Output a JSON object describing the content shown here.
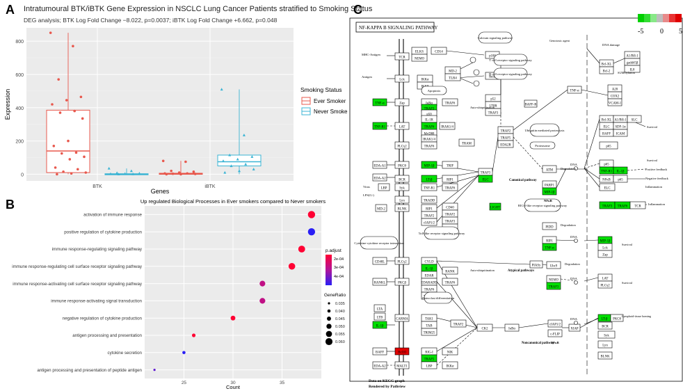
{
  "panel_a": {
    "letter": "A",
    "title": "Intratumoural BTK/iBTK Gene Expression in NSCLC Lung Cancer Patients stratified to Smoking Status",
    "subtitle": "DEG analysis; BTK Log Fold Change −8.022, p=0.0037; iBTK Log Fold Change +6.662, p=0.048",
    "legend_title": "Smoking Status",
    "colors": {
      "ever": "#e8584d",
      "never": "#3bb4d4",
      "panel_bg": "#ebebeb"
    },
    "chart_data": {
      "type": "box",
      "title": "Intratumoural BTK/iBTK Gene Expression in NSCLC Lung Cancer Patients stratified to Smoking Status",
      "xlabel": "Genes",
      "ylabel": "Expression",
      "categories": [
        "BTK",
        "iBTK"
      ],
      "ylim": [
        -40,
        880
      ],
      "yticks": [
        0,
        200,
        400,
        600,
        800
      ],
      "series": [
        {
          "name": "Ever Smoker",
          "boxes": [
            {
              "q1": 10,
              "median": 140,
              "q3": 385,
              "min": 0,
              "max": 850
            },
            {
              "q1": 0,
              "median": 2,
              "q3": 6,
              "min": 0,
              "max": 80
            }
          ],
          "points": [
            [
              850,
              770,
              570,
              465,
              445,
              420,
              380,
              370,
              335,
              200,
              170,
              130,
              125,
              105,
              90,
              40,
              30,
              15,
              10,
              5,
              0
            ],
            [
              80,
              75,
              20,
              15,
              10,
              5,
              5,
              3,
              2,
              0,
              0
            ]
          ]
        },
        {
          "name": "Never Smoker",
          "boxes": [
            {
              "q1": 0,
              "median": 1,
              "q3": 3,
              "min": 0,
              "max": 35
            },
            {
              "q1": 50,
              "median": 75,
              "q3": 115,
              "min": 0,
              "max": 510
            }
          ],
          "points": [
            [
              35,
              20,
              8,
              5,
              3,
              2,
              1,
              0
            ],
            [
              510,
              235,
              115,
              105,
              90,
              80,
              60,
              50,
              30,
              20,
              10
            ]
          ]
        }
      ]
    }
  },
  "panel_b": {
    "letter": "B",
    "legend_padjust_title": "p.adjust",
    "legend_padjust_labels": [
      "2e-04",
      "3e-04",
      "4e-04"
    ],
    "legend_ratio_title": "GeneRatio",
    "legend_ratio_labels": [
      "0.035",
      "0.040",
      "0.045",
      "0.050",
      "0.055",
      "0.060"
    ],
    "chart_data": {
      "type": "scatter",
      "title": "Up regulated Biological Processes in Ever smokers compared to Never smokers",
      "xlabel": "Count",
      "xlim": [
        21,
        39
      ],
      "xticks": [
        25,
        30,
        35
      ],
      "categories": [
        "activation of immune response",
        "positive regulation of cytokine production",
        "immune response-regulating signaling pathway",
        "immune response-regulating cell surface receptor signaling pathway",
        "immune response-activating cell surface receptor signaling pathway",
        "immune response-activating signal transduction",
        "negative regulation of cytokine production",
        "antigen processing and presentation",
        "cytokine secretion",
        "antigen processing and presentation of peptide antigen"
      ],
      "count": [
        38,
        38,
        37,
        36,
        33,
        33,
        30,
        26,
        25,
        22
      ],
      "p_adjust": [
        0.0002,
        0.00045,
        0.0002,
        0.0002,
        0.0003,
        0.0003,
        0.0002,
        0.0002,
        0.00045,
        0.0004
      ],
      "gene_ratio": [
        0.061,
        0.061,
        0.059,
        0.058,
        0.053,
        0.053,
        0.048,
        0.042,
        0.04,
        0.035
      ]
    }
  },
  "panel_c": {
    "letter": "C",
    "pathway_title": "NF-KAPPA B SIGNALING PATHWAY",
    "colorbar_labels": [
      "-5",
      "0",
      "5"
    ],
    "footer_1": "Data on KEGG graph",
    "footer_2": "Rendered by Pathview",
    "pathway_labels": {
      "canonical": "Canonical pathway",
      "atypical": "Atypical pathways",
      "noncanonical": "Noncanonical pathway",
      "nfkb": "NFκB",
      "dna": "DNA",
      "degradation": "Degradation",
      "survival": "Survival",
      "inflammation": "Inflammation",
      "positive_feedback": "Positive feedback",
      "negative_feedback": "Negative feedback",
      "apoptosis": "Apoptosis",
      "ubiquitin": "Ubiquitin mediated proteolysis",
      "proteasome": "Proteasome",
      "auto_ub": "Auto-ubiquitination",
      "lymphoid": "Lymphoid-tissue homing",
      "sumo": "SUMOylation",
      "genotoxic": "Genotoxic agent",
      "dna_damage": "DNA damage",
      "calcium": "Calcium signaling pathway",
      "tcell": "T cell receptor signaling pathway",
      "bcell": "B cell receptor signaling pathway",
      "toll": "Toll-like receptor signaling pathway",
      "rig": "RIG-I-like receptor signaling pathway",
      "cytokine": "Cytokine-cytokine receptor interaction",
      "osteoclast": "Osteoclast differentiation",
      "mhc": "MHC-Antigen",
      "antigen": "Antigen",
      "virus": "Virus",
      "lps": "LPS(G-)"
    },
    "nodes_white": [
      "TCR",
      "Lck",
      "Zap",
      "LAT",
      "PLCγ2",
      "PKCθ",
      "BCR",
      "Syk",
      "Lyn",
      "BLNK",
      "PLCγ2",
      "PKCβ",
      "CARMA",
      "Bcl10",
      "MALT1",
      "ELKS",
      "NEMO",
      "IKKα",
      "IKKβ",
      "IκBα",
      "p50",
      "IL-1R",
      "MyD88",
      "IRAK1/4",
      "TRAF6",
      "TNF-R1",
      "TRADD",
      "RIP1",
      "TRAF2",
      "cIAP1/2",
      "CYLD",
      "EDAR",
      "EDARADD",
      "TRAF6",
      "XEDAR",
      "TAK1",
      "TAB",
      "TRIM25",
      "RIG-I",
      "LBP",
      "CD14",
      "MD-2",
      "TLR4",
      "TRAF6",
      "IRAK1/4",
      "TRAM",
      "TRIF",
      "RIP1",
      "TRAF6",
      "CD40",
      "TRAF2",
      "TRAF3",
      "TRAF5",
      "RANK",
      "TRAF6",
      "TRAF2",
      "NIK",
      "IKKα",
      "p100",
      "RelB",
      "p52",
      "LTβR",
      "TRAF3",
      "BAFF-R",
      "TRAF3",
      "TRAF2",
      "TRAF5",
      "EDA2R",
      "ATM",
      "PARP1",
      "PIASy",
      "Ubc9",
      "NEMO",
      "PIDD",
      "RIP1",
      "CK2",
      "IκBα",
      "cIAP1/2",
      "c-FLIP",
      "XIAP",
      "Bcl-XL",
      "Bcl-2",
      "A1/Bfl-1",
      "gadd45β",
      "IL8",
      "TNF-α",
      "A20",
      "COX2",
      "VCAM-1",
      "Bcl-XL",
      "A1/Bfl-1",
      "SLC",
      "ELC",
      "SDF-1α",
      "BAFF",
      "ICAM",
      "p65",
      "p65",
      "NFκB",
      "p65",
      "ELC"
    ],
    "nodes_green": [
      "TNF-α",
      "TNF-R1",
      "IL-1β",
      "TRAF3",
      "TRAF6",
      "MIP-1β",
      "LT-β",
      "IL-1β",
      "TRAF5",
      "ELC",
      "MIP-1β",
      "LIGHT",
      "TRAF3"
    ],
    "nodes_red": [
      "BAFF-R"
    ]
  }
}
